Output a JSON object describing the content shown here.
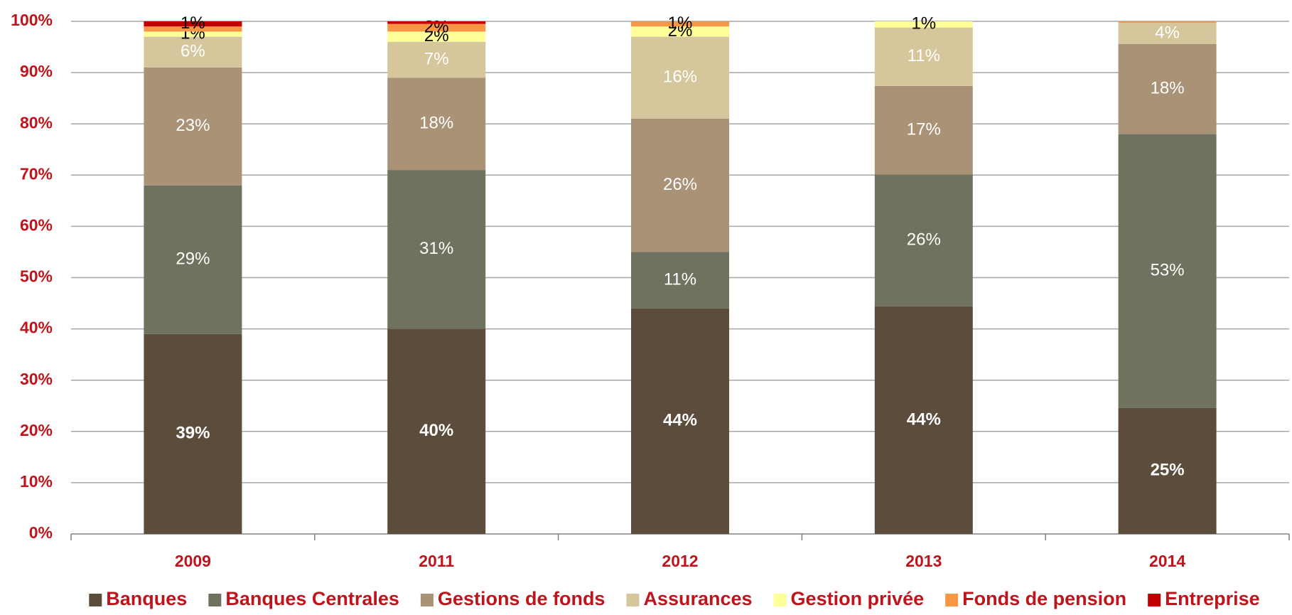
{
  "chart_data": {
    "type": "stacked_bar",
    "categories": [
      "2009",
      "2011",
      "2012",
      "2013",
      "2014"
    ],
    "ylim": [
      0,
      100
    ],
    "yticks": [
      {
        "value": 0,
        "label": "0%"
      },
      {
        "value": 10,
        "label": "10%"
      },
      {
        "value": 20,
        "label": "20%"
      },
      {
        "value": 30,
        "label": "30%"
      },
      {
        "value": 40,
        "label": "40%"
      },
      {
        "value": 50,
        "label": "50%"
      },
      {
        "value": 60,
        "label": "60%"
      },
      {
        "value": 70,
        "label": "70%"
      },
      {
        "value": 80,
        "label": "80%"
      },
      {
        "value": 90,
        "label": "90%"
      },
      {
        "value": 100,
        "label": "100%"
      }
    ],
    "grid": true,
    "legend": "bottom",
    "series": [
      {
        "name": "Banques",
        "color": "#5b4c3c",
        "label_color": "#ffffff",
        "values": [
          39,
          40,
          44,
          44.4,
          24.6
        ],
        "value_labels": [
          "39%",
          "40%",
          "44%",
          "44%",
          "25%"
        ]
      },
      {
        "name": "Banques Centrales",
        "color": "#6f725e",
        "label_color": "#ffffff",
        "values": [
          29,
          31,
          11,
          25.7,
          53.4
        ],
        "value_labels": [
          "29%",
          "31%",
          "11%",
          "26%",
          "53%"
        ]
      },
      {
        "name": "Gestions de fonds",
        "color": "#a99276",
        "label_color": "#ffffff",
        "values": [
          23,
          18,
          26,
          17.3,
          17.6
        ],
        "value_labels": [
          "23%",
          "18%",
          "26%",
          "17%",
          "18%"
        ]
      },
      {
        "name": "Assurances",
        "color": "#d6c69c",
        "label_color": "#ffffff",
        "values": [
          6,
          7,
          16,
          11.4,
          4.1
        ],
        "value_labels": [
          "6%",
          "7%",
          "16%",
          "11%",
          "4%"
        ]
      },
      {
        "name": "Gestion privée",
        "color": "#ffff99",
        "label_color": "#000000",
        "values": [
          1,
          2,
          2,
          1.2,
          0
        ],
        "value_labels": [
          "1%",
          "2%",
          "2%",
          "1%",
          null
        ]
      },
      {
        "name": "Fonds de pension",
        "color": "#f79646",
        "label_color": "#000000",
        "values": [
          1,
          1.5,
          1,
          0,
          0.3
        ],
        "value_labels": [
          null,
          "2%",
          "1%",
          null,
          null
        ]
      },
      {
        "name": "Entreprise",
        "color": "#c00000",
        "label_color": "#000000",
        "values": [
          1,
          0.5,
          0,
          0,
          0
        ],
        "value_labels": [
          "1%",
          null,
          null,
          null,
          null
        ]
      }
    ]
  }
}
